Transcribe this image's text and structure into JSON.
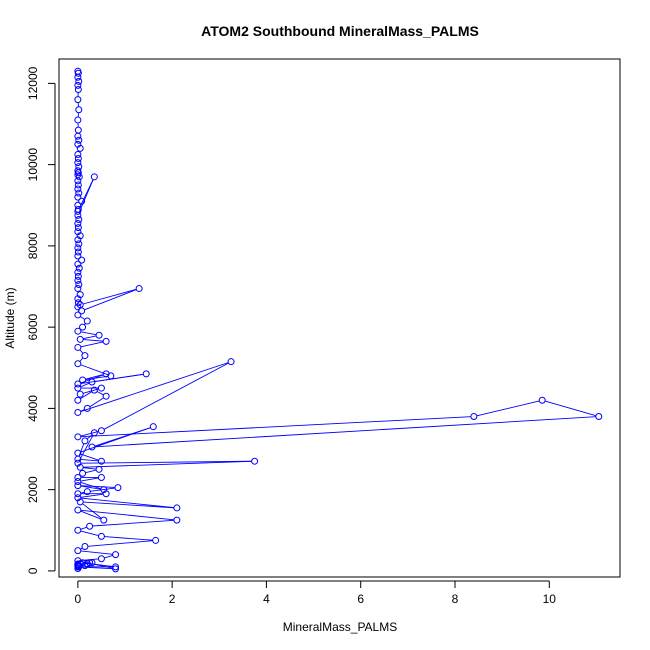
{
  "chart_data": {
    "type": "scatter",
    "title": "ATOM2 Southbound MineralMass_PALMS",
    "xlabel": "MineralMass_PALMS",
    "ylabel": "Altitude (m)",
    "xlim": [
      -0.4,
      11.5
    ],
    "ylim": [
      -150,
      12600
    ],
    "x_ticks": [
      0,
      2,
      4,
      6,
      8,
      10
    ],
    "y_ticks": [
      0,
      2000,
      4000,
      6000,
      8000,
      10000,
      12000
    ],
    "grid": false,
    "legend": "none",
    "color": "#0000ff",
    "series": [
      {
        "x": [
          0.0,
          0.01,
          0.0,
          0.02,
          0.0,
          0.01,
          0.0,
          0.02,
          0.0,
          0.01,
          0.0,
          0.02,
          0.0,
          0.05,
          0.0,
          0.01,
          0.0,
          0.02,
          0.0,
          0.01,
          0.0,
          0.03,
          0.0,
          0.01,
          0.0,
          0.02,
          0.0,
          0.08,
          0.0,
          0.01,
          0.0,
          0.35,
          0.0,
          0.02,
          0.0,
          0.01,
          0.0,
          0.05,
          0.0,
          0.02,
          0.0,
          0.01,
          0.0,
          0.08,
          0.0,
          0.03,
          0.0,
          0.01,
          0.0,
          0.02,
          0.0,
          0.05,
          0.0,
          0.01,
          0.0,
          0.08,
          1.3,
          0.05,
          0.0,
          0.2,
          0.1,
          0.0,
          0.45,
          0.05,
          0.6,
          0.0,
          0.15,
          0.0,
          0.7,
          0.1,
          0.6,
          0.0,
          1.45,
          0.3,
          0.0,
          0.5,
          0.05,
          0.0,
          0.35,
          0.6,
          0.2,
          0.0,
          3.25,
          0.5,
          0.0,
          8.4,
          9.85,
          11.05,
          0.3,
          1.6,
          0.0,
          0.5,
          0.0,
          0.15,
          0.35,
          0.0,
          3.75,
          0.05,
          0.45,
          0.1,
          0.0,
          0.5,
          0.0,
          0.55,
          0.0,
          0.85,
          0.2,
          0.0,
          0.6,
          0.0,
          2.1,
          0.05,
          0.55,
          0.0,
          2.1,
          0.25,
          0.0,
          0.5,
          1.65,
          0.15,
          0.0,
          0.8,
          0.5,
          0.0,
          0.8,
          0.0,
          0.8,
          0.1,
          0.3,
          0.0,
          0.25,
          0.05,
          0.0,
          0.2,
          0.0,
          0.01,
          0.0,
          0.15,
          0.0,
          0.02,
          0.0
        ],
        "y": [
          12300,
          12250,
          12150,
          12050,
          11950,
          11850,
          11600,
          11350,
          11100,
          10850,
          10700,
          10600,
          10500,
          10400,
          10250,
          10150,
          10050,
          9950,
          9850,
          9800,
          9750,
          9700,
          9600,
          9500,
          9400,
          9300,
          9200,
          9100,
          9000,
          8900,
          8850,
          9700,
          8750,
          8650,
          8550,
          8450,
          8350,
          8250,
          8150,
          8050,
          7950,
          7850,
          7750,
          7650,
          7550,
          7450,
          7350,
          7250,
          7150,
          7050,
          6950,
          6800,
          6700,
          6600,
          6500,
          6400,
          6950,
          6550,
          6300,
          6150,
          6000,
          5900,
          5800,
          5700,
          5650,
          5500,
          5300,
          5100,
          4800,
          4700,
          4850,
          4600,
          4850,
          4650,
          4500,
          4500,
          4350,
          4200,
          4450,
          4300,
          4000,
          3900,
          5150,
          3450,
          3300,
          3800,
          4200,
          3800,
          3050,
          3550,
          2900,
          2700,
          2750,
          3200,
          3400,
          2650,
          2700,
          2550,
          2500,
          2400,
          2300,
          2300,
          2200,
          2000,
          2100,
          2050,
          1950,
          1900,
          1900,
          1800,
          1550,
          1700,
          1250,
          1500,
          1250,
          1100,
          1000,
          850,
          750,
          600,
          500,
          400,
          300,
          250,
          50,
          100,
          100,
          200,
          200,
          150,
          200,
          180,
          170,
          180,
          160,
          150,
          140,
          130,
          120,
          100,
          60
        ]
      }
    ]
  }
}
